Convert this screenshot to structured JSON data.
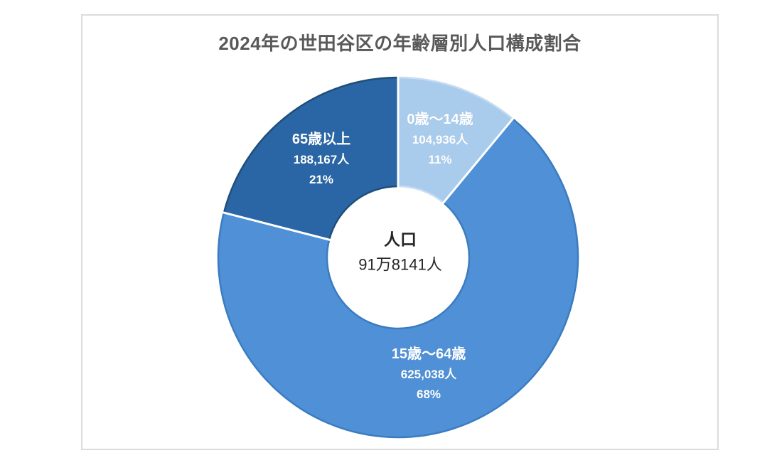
{
  "chart_data": {
    "type": "pie",
    "variant": "donut",
    "title": "2024年の世田谷区の年齢層別人口構成割合",
    "title_color": "#595959",
    "direction": "clockwise",
    "start_angle_deg": 0,
    "legend": "none",
    "label_text_color": "#ffffff",
    "center_label": {
      "title": "人口",
      "value": "91万8141人"
    },
    "total": 918141,
    "slices": [
      {
        "label": "0歳～14歳",
        "value": 104936,
        "value_text": "104,936人",
        "percent": 11,
        "percent_text": "11%",
        "color": "#a9cbec",
        "edge_color": "#c8dcf2"
      },
      {
        "label": "15歳～64歳",
        "value": 625038,
        "value_text": "625,038人",
        "percent": 68,
        "percent_text": "68%",
        "color": "#4f90d6",
        "edge_color": "#3b7cc0"
      },
      {
        "label": "65歳以上",
        "value": 188167,
        "value_text": "188,167人",
        "percent": 21,
        "percent_text": "21%",
        "color": "#2a66a5",
        "edge_color": "#1f4e79"
      }
    ]
  }
}
